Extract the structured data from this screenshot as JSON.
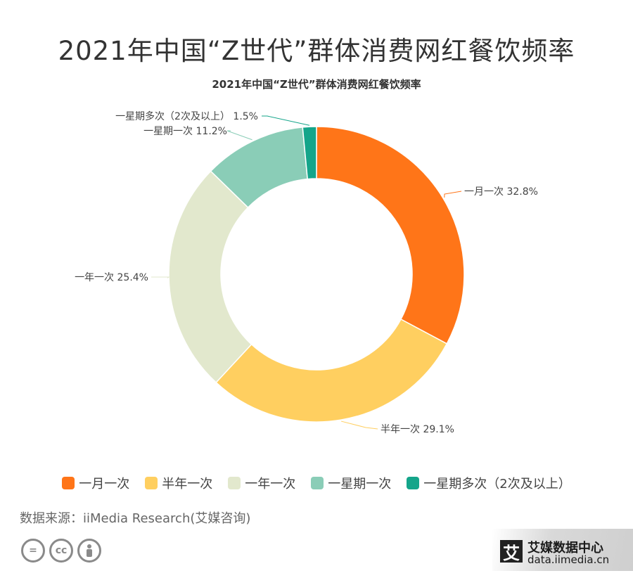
{
  "header": {
    "title": "2021年中国“Z世代”群体消费网红餐饮频率"
  },
  "chart_data": {
    "type": "pie",
    "title": "2021年中国“Z世代”群体消费网红餐饮频率",
    "donut": true,
    "slices": [
      {
        "label": "一月一次",
        "value": 32.8,
        "display": "32.8%",
        "color": "#FF7518"
      },
      {
        "label": "半年一次",
        "value": 29.1,
        "display": "29.1%",
        "color": "#FFCF60"
      },
      {
        "label": "一年一次",
        "value": 25.4,
        "display": "25.4%",
        "color": "#E2E8CD"
      },
      {
        "label": "一星期一次",
        "value": 11.2,
        "display": "11.2%",
        "color": "#8ACDB7"
      },
      {
        "label": "一星期多次（2次及以上）",
        "value": 1.5,
        "display": "1.5%",
        "color": "#14A58A"
      }
    ],
    "legend_position": "bottom"
  },
  "footer": {
    "source": "数据来源：iiMedia Research(艾媒咨询)",
    "cc_icons": [
      "equals-icon",
      "cc-icon",
      "person-icon"
    ],
    "brand_mark": "艾",
    "brand_name": "艾媒数据中心",
    "brand_url": "data.iimedia.cn"
  }
}
